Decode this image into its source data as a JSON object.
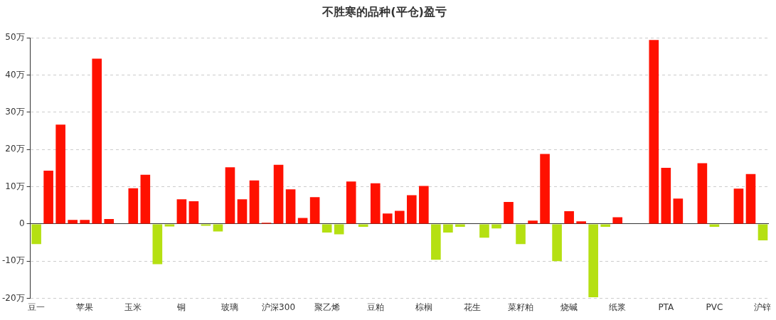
{
  "chart_data": {
    "type": "bar",
    "title": "不胜寒的品种(平仓)盈亏",
    "categories": [
      "豆一",
      null,
      null,
      null,
      "苹果",
      null,
      null,
      null,
      "玉米",
      null,
      null,
      null,
      "铜",
      null,
      null,
      null,
      "玻璃",
      null,
      null,
      null,
      "沪深300",
      null,
      null,
      null,
      "聚乙烯",
      null,
      null,
      null,
      "豆粕",
      null,
      null,
      null,
      "棕榈",
      null,
      null,
      null,
      "花生",
      null,
      null,
      null,
      "菜籽粕",
      null,
      null,
      null,
      "烧碱",
      null,
      null,
      null,
      "纸浆",
      null,
      null,
      null,
      "PTA",
      null,
      null,
      null,
      "PVC",
      null,
      null,
      null,
      "沪锌"
    ],
    "values": [
      -5.4,
      14.3,
      26.7,
      1.1,
      1.1,
      44.4,
      1.3,
      null,
      9.6,
      13.2,
      -10.8,
      -0.7,
      6.6,
      6.1,
      -0.5,
      -2.0,
      15.2,
      6.6,
      11.7,
      0.3,
      15.9,
      9.3,
      1.6,
      7.2,
      -2.3,
      -2.8,
      11.4,
      -0.8,
      10.9,
      2.8,
      3.5,
      7.7,
      10.2,
      -9.6,
      -2.3,
      -0.8,
      null,
      -3.7,
      -1.2,
      5.9,
      -5.4,
      0.9,
      18.8,
      -10.0,
      3.4,
      0.7,
      -19.7,
      -0.8,
      1.8,
      0,
      null,
      49.4,
      15.1,
      6.8,
      null,
      16.3,
      -0.8,
      0,
      9.5,
      13.4,
      -4.4
    ],
    "colors": [
      "#b5e012",
      "#ff1100",
      "#ff1100",
      "#ff1100",
      "#ff1100",
      "#ff1100",
      "#ff1100",
      "#ff1100",
      "#ff1100",
      "#ff1100",
      "#b5e012",
      "#b5e012",
      "#ff1100",
      "#ff1100",
      "#b5e012",
      "#b5e012",
      "#ff1100",
      "#ff1100",
      "#ff1100",
      "#ff1100",
      "#ff1100",
      "#ff1100",
      "#ff1100",
      "#ff1100",
      "#b5e012",
      "#b5e012",
      "#ff1100",
      "#b5e012",
      "#ff1100",
      "#ff1100",
      "#ff1100",
      "#ff1100",
      "#ff1100",
      "#b5e012",
      "#b5e012",
      "#b5e012",
      "#ff1100",
      "#b5e012",
      "#b5e012",
      "#ff1100",
      "#b5e012",
      "#ff1100",
      "#ff1100",
      "#b5e012",
      "#ff1100",
      "#ff1100",
      "#b5e012",
      "#b5e012",
      "#ff1100",
      "#ff1100",
      "#ff1100",
      "#ff1100",
      "#ff1100",
      "#ff1100",
      "#ff1100",
      "#ff1100",
      "#b5e012",
      "#ff1100",
      "#ff1100",
      "#ff1100",
      "#b5e012"
    ],
    "ylim": [
      -20,
      50
    ],
    "yticks": [
      {
        "value": -20,
        "label": "-20万"
      },
      {
        "value": -10,
        "label": "-10万"
      },
      0,
      {
        "value": 10,
        "label": "10万"
      },
      {
        "value": 20,
        "label": "20万"
      },
      {
        "value": 30,
        "label": "30万"
      },
      {
        "value": 40,
        "label": "40万"
      },
      {
        "value": 50,
        "label": "50万"
      }
    ],
    "grid": "y",
    "legend": false
  }
}
